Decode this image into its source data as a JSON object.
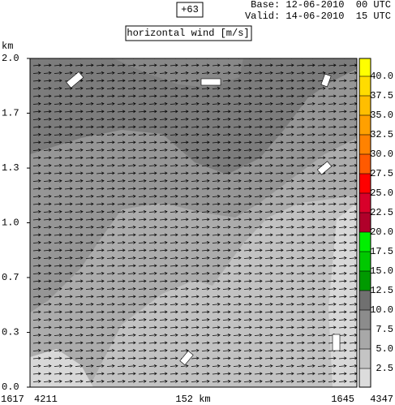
{
  "header": {
    "forecast_hour": "+63",
    "base": "Base: 12-06-2010  00 UTC",
    "valid": "Valid: 14-06-2010  15 UTC"
  },
  "chart_data": {
    "type": "cross-section",
    "title": "horizontal wind [m/s]",
    "y_label": "km",
    "ylim": [
      0,
      2
    ],
    "yticks": [
      {
        "value": 0,
        "label": "0.0"
      },
      {
        "value": 0.333,
        "label": "0.3"
      },
      {
        "value": 0.667,
        "label": "0.7"
      },
      {
        "value": 1,
        "label": "1.0"
      },
      {
        "value": 1.333,
        "label": "1.3"
      },
      {
        "value": 1.667,
        "label": "1.7"
      },
      {
        "value": 2,
        "label": "2.0"
      }
    ],
    "x_labels": [
      "1617",
      "4211",
      "152 km",
      "1645",
      "4347"
    ],
    "colorbar": {
      "levels": [
        2.5,
        {
          "value": 5,
          "label": "5.0"
        },
        7.5,
        {
          "value": 10,
          "label": "10.0"
        },
        12.5,
        {
          "value": 15,
          "label": "15.0"
        },
        17.5,
        {
          "value": 20,
          "label": "20.0"
        },
        22.5,
        {
          "value": 25,
          "label": "25.0"
        },
        27.5,
        {
          "value": 30,
          "label": "30.0"
        },
        32.5,
        {
          "value": 35,
          "label": "35.0"
        },
        37.5,
        {
          "value": 40,
          "label": "40.0"
        }
      ],
      "colors": [
        "#dcdcdc",
        "#c4c4c4",
        "#a8a8a8",
        "#8c8c8c",
        "#707070",
        "#009a00",
        "#00c800",
        "#00f000",
        "#b0002a",
        "#d8002a",
        "#ff0000",
        "#ff5a00",
        "#ff8200",
        "#ffa000",
        "#ffbe00",
        "#ffdc00",
        "#ffff00"
      ]
    }
  }
}
